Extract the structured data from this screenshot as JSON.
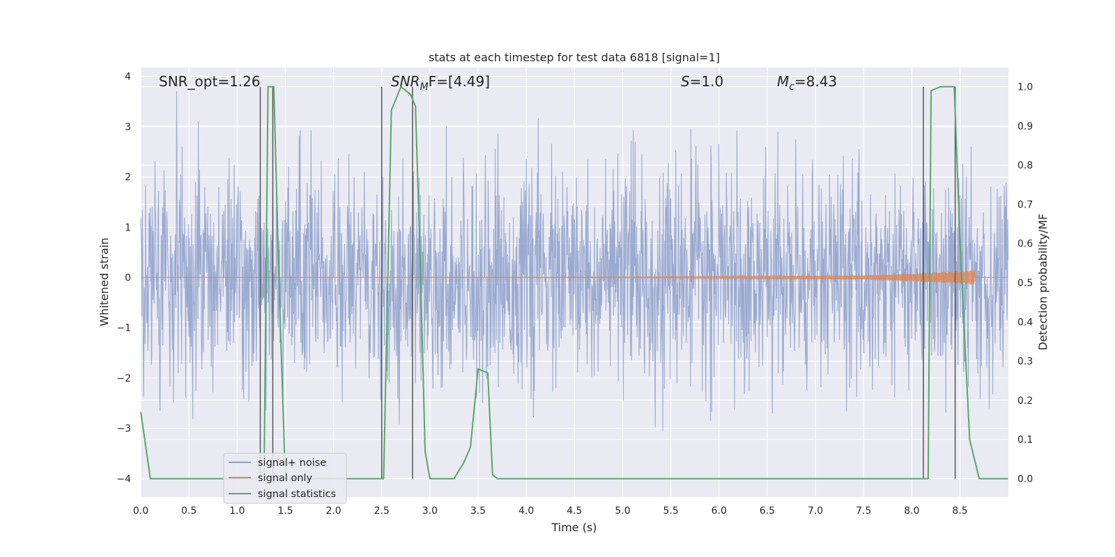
{
  "chart_data": {
    "type": "line",
    "title": "stats at each timestep for test data 6818 [signal=1]",
    "xlabel": "Time (s)",
    "ylabel": "Whitened strain",
    "ylabel_right": "Detection probability/MF",
    "xlim": [
      0.0,
      9.0
    ],
    "ylim": [
      -4.4,
      4.2
    ],
    "ylim_right": [
      -0.05,
      1.03
    ],
    "x_ticks": [
      "0.0",
      "0.5",
      "1.0",
      "1.5",
      "2.0",
      "2.5",
      "3.0",
      "3.5",
      "4.0",
      "4.5",
      "5.0",
      "5.5",
      "6.0",
      "6.5",
      "7.0",
      "7.5",
      "8.0",
      "8.5"
    ],
    "y_ticks": [
      "4",
      "3",
      "2",
      "1",
      "0",
      "−1",
      "−2",
      "−3",
      "−4"
    ],
    "y_ticks_right": [
      "1.0",
      "0.9",
      "0.8",
      "0.7",
      "0.6",
      "0.5",
      "0.4",
      "0.3",
      "0.2",
      "0.1",
      "0.0"
    ],
    "grid": true,
    "legend_position": "lower-left",
    "annotations": {
      "snr_opt": "SNR_opt=1.26",
      "snr_mf_prefix": "SNR",
      "snr_mf_sub": "M",
      "snr_mf_suffix": "F=[4.49]",
      "s_sym": "S",
      "s_val": "=1.0",
      "mc_sym": "M",
      "mc_sub": "c",
      "mc_val": "=8.43"
    },
    "series": [
      {
        "name": "signal+ noise",
        "color": "#8c9fca",
        "approx_range": [
          -3.7,
          3.8
        ],
        "typical_band": [
          -2.0,
          2.0
        ],
        "x_range": [
          0.0,
          9.0
        ]
      },
      {
        "name": "signal only",
        "color": "#dd8452",
        "amplitude_envelope": {
          "x": [
            0.0,
            5.0,
            7.5,
            8.0,
            8.4,
            8.65,
            9.0
          ],
          "y": [
            0.0,
            0.01,
            0.04,
            0.08,
            0.12,
            0.15,
            0.0
          ]
        }
      },
      {
        "name": "signal statistics",
        "color": "#55a868",
        "axis": "right",
        "x": [
          0.0,
          0.1,
          1.2,
          1.28,
          1.32,
          1.38,
          1.44,
          1.5,
          2.5,
          2.52,
          2.6,
          2.7,
          2.8,
          2.85,
          2.9,
          2.95,
          3.0,
          3.25,
          3.3,
          3.35,
          3.42,
          3.5,
          3.6,
          3.65,
          3.7,
          8.12,
          8.17,
          8.2,
          8.3,
          8.44,
          8.5,
          8.6,
          8.7,
          9.0
        ],
        "y": [
          0.17,
          0.0,
          0.0,
          0.02,
          1.0,
          1.0,
          0.45,
          0.0,
          0.0,
          0.0,
          0.94,
          1.0,
          0.98,
          0.95,
          0.55,
          0.07,
          0.0,
          0.0,
          0.02,
          0.04,
          0.08,
          0.28,
          0.27,
          0.01,
          0.0,
          0.0,
          0.0,
          0.99,
          1.0,
          1.0,
          0.6,
          0.1,
          0.0,
          0.0
        ]
      }
    ],
    "vertical_markers": [
      1.24,
      1.37,
      2.5,
      2.82,
      8.12,
      8.45
    ]
  }
}
